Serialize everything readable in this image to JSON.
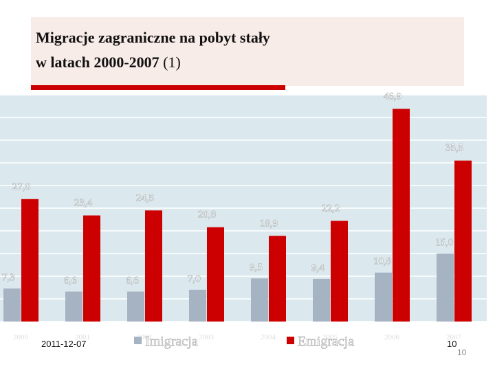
{
  "slide": {
    "title_lines": [
      "Migracje zagraniczne na pobyt stały",
      "w latach 2000-2007"
    ],
    "title_note": "(1)",
    "date": "2011-12-07",
    "page_numbers": [
      "10",
      "10"
    ]
  },
  "chart_data": {
    "type": "bar",
    "categories": [
      "2000",
      "2001",
      "2002",
      "2003",
      "2004",
      "2005",
      "2006",
      "2007"
    ],
    "series": [
      {
        "name": "Imigracja",
        "color": "#a5b3c2",
        "values": [
          7.3,
          6.6,
          6.6,
          7.0,
          9.5,
          9.4,
          10.8,
          15.0
        ],
        "value_labels": [
          "7,3",
          "6,6",
          "6,6",
          "7,0",
          "9,5",
          "9,4",
          "10,8",
          "15,0"
        ]
      },
      {
        "name": "Emigracja",
        "color": "#cc0000",
        "values": [
          27.0,
          23.4,
          24.5,
          20.8,
          18.9,
          22.2,
          46.9,
          35.5
        ],
        "value_labels": [
          "27,0",
          "23,4",
          "24,5",
          "20,8",
          "18,9",
          "22,2",
          "46,9",
          "35,5"
        ]
      }
    ],
    "ylim": [
      0,
      50
    ],
    "yticks": [
      0,
      5,
      10,
      15,
      20,
      25,
      30,
      35,
      40,
      45,
      50
    ],
    "grid": true
  }
}
